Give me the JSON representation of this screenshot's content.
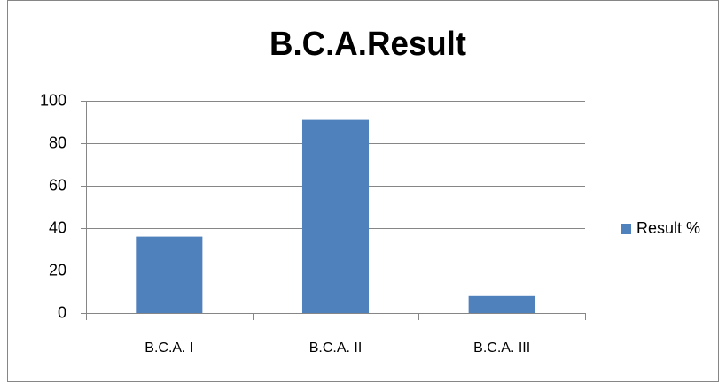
{
  "chart_data": {
    "type": "bar",
    "title": "B.C.A.Result",
    "categories": [
      "B.C.A. I",
      "B.C.A. II",
      "B.C.A. III"
    ],
    "series": [
      {
        "name": "Result %",
        "color": "#4f81bd",
        "values": [
          36,
          91,
          8
        ]
      }
    ],
    "ylim": [
      0,
      100
    ],
    "yticks": [
      0,
      20,
      40,
      60,
      80,
      100
    ],
    "grid": true,
    "legend": "right"
  }
}
